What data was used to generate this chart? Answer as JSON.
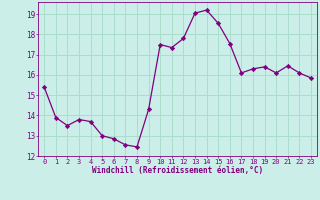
{
  "x": [
    0,
    1,
    2,
    3,
    4,
    5,
    6,
    7,
    8,
    9,
    10,
    11,
    12,
    13,
    14,
    15,
    16,
    17,
    18,
    19,
    20,
    21,
    22,
    23
  ],
  "y": [
    15.4,
    13.9,
    13.5,
    13.8,
    13.7,
    13.0,
    12.85,
    12.55,
    12.45,
    14.3,
    17.5,
    17.35,
    17.8,
    19.05,
    19.2,
    18.55,
    17.55,
    16.1,
    16.3,
    16.4,
    16.1,
    16.45,
    16.1,
    15.85
  ],
  "line_color": "#800080",
  "marker": "D",
  "marker_size": 2.2,
  "bg_color": "#cceee8",
  "grid_color": "#aaddcc",
  "xlabel": "Windchill (Refroidissement éolien,°C)",
  "xlabel_color": "#800080",
  "tick_color": "#800080",
  "xlim": [
    -0.5,
    23.5
  ],
  "ylim": [
    12,
    19.6
  ],
  "yticks": [
    12,
    13,
    14,
    15,
    16,
    17,
    18,
    19
  ],
  "xticks": [
    0,
    1,
    2,
    3,
    4,
    5,
    6,
    7,
    8,
    9,
    10,
    11,
    12,
    13,
    14,
    15,
    16,
    17,
    18,
    19,
    20,
    21,
    22,
    23
  ],
  "xtick_labels": [
    "0",
    "1",
    "2",
    "3",
    "4",
    "5",
    "6",
    "7",
    "8",
    "9",
    "10",
    "11",
    "12",
    "13",
    "14",
    "15",
    "16",
    "17",
    "18",
    "19",
    "20",
    "21",
    "22",
    "23"
  ]
}
